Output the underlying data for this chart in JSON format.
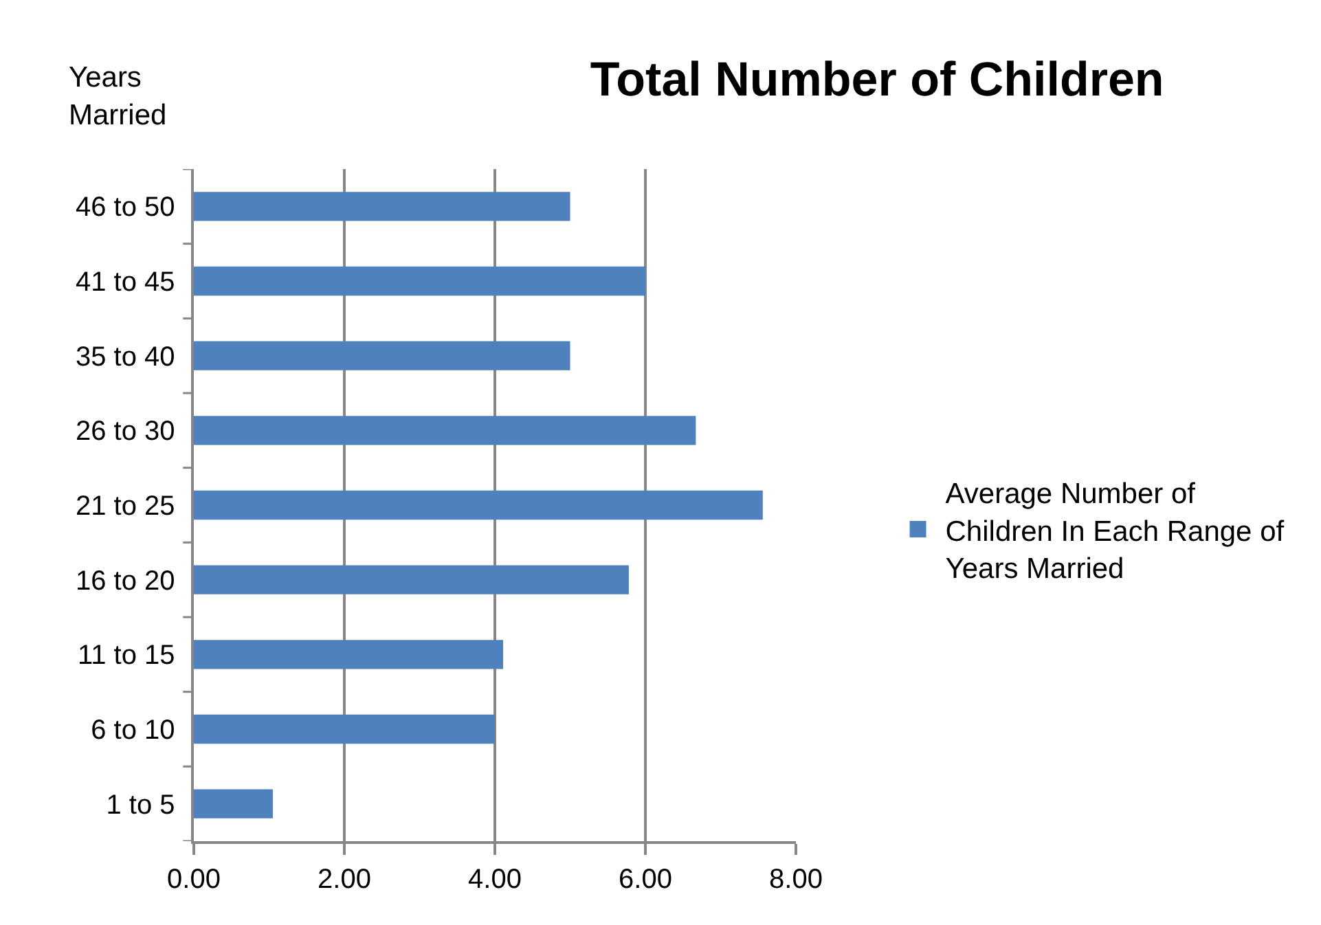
{
  "chart_data": {
    "type": "bar",
    "orientation": "horizontal",
    "title": "Total Number of Children",
    "ylabel": "Years Married",
    "categories": [
      "46 to 50",
      "41 to 45",
      "35 to 40",
      "26 to 30",
      "21 to 25",
      "16 to 20",
      "11 to 15",
      "6 to 10",
      "1 to 5"
    ],
    "series": [
      {
        "name": "Average Number of Children In Each Range of Years Married",
        "color": "#4f81bd",
        "values": [
          5.0,
          6.0,
          5.0,
          6.67,
          7.56,
          5.78,
          4.11,
          4.0,
          1.05
        ]
      }
    ],
    "xlim": [
      0,
      8
    ],
    "xticks": [
      {
        "value": 0,
        "label": "0.00"
      },
      {
        "value": 2,
        "label": "2.00"
      },
      {
        "value": 4,
        "label": "4.00"
      },
      {
        "value": 6,
        "label": "6.00"
      },
      {
        "value": 8,
        "label": "8.00"
      }
    ],
    "grid": "x",
    "legend": "right"
  }
}
